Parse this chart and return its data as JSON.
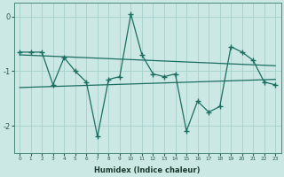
{
  "xlabel": "Humidex (Indice chaleur)",
  "background_color": "#cce8e4",
  "grid_color": "#a8d0cc",
  "line_color": "#1a6e60",
  "x_values": [
    0,
    1,
    2,
    3,
    4,
    5,
    6,
    7,
    8,
    9,
    10,
    11,
    12,
    13,
    14,
    15,
    16,
    17,
    18,
    19,
    20,
    21,
    22,
    23
  ],
  "main_y": [
    -0.65,
    -0.65,
    -0.65,
    -1.25,
    -0.75,
    -1.0,
    -1.2,
    -2.2,
    -1.15,
    -1.1,
    0.05,
    -0.7,
    -1.05,
    -1.1,
    -1.05,
    -2.1,
    -1.55,
    -1.75,
    -1.65,
    -0.55,
    -0.65,
    -0.8,
    -1.2,
    -1.25
  ],
  "trend1_x0": 0,
  "trend1_x1": 23,
  "trend1_y0": -0.7,
  "trend1_y1": -0.9,
  "trend2_x0": 0,
  "trend2_x1": 23,
  "trend2_y0": -1.3,
  "trend2_y1": -1.15,
  "ylim": [
    -2.5,
    0.25
  ],
  "xlim": [
    -0.5,
    23.5
  ],
  "yticks": [
    0,
    -1,
    -2
  ],
  "xticks": [
    0,
    1,
    2,
    3,
    4,
    5,
    6,
    7,
    8,
    9,
    10,
    11,
    12,
    13,
    14,
    15,
    16,
    17,
    18,
    19,
    20,
    21,
    22,
    23
  ]
}
